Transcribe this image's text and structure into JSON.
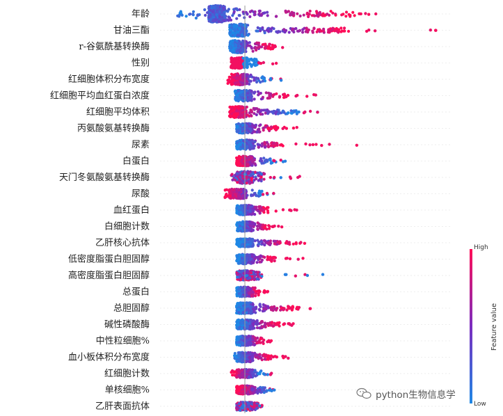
{
  "chart_data": {
    "type": "scatter",
    "subtype": "beeswarm",
    "features": [
      "年龄",
      "甘油三酯",
      "r-谷氨酰基转换酶",
      "性别",
      "红细胞体积分布宽度",
      "红细胞平均血红蛋白浓度",
      "红细胞平均体积",
      "丙氨酸氨基转换酶",
      "尿素",
      "白蛋白",
      "天门冬氨酸氨基转换酶",
      "尿酸",
      "血红蛋白",
      "白细胞计数",
      "乙肝核心抗体",
      "低密度脂蛋白胆固醇",
      "高密度脂蛋白胆固醇",
      "总蛋白",
      "总胆固醇",
      "碱性磷酸酶",
      "中性粒细胞%",
      "血小板体积分布宽度",
      "红细胞计数",
      "单核细胞%",
      "乙肝表面抗体"
    ],
    "value_range": [
      -0.5,
      1.1
    ],
    "colorbar": {
      "high": "High",
      "low": "Low",
      "title": "Feature value",
      "low_color": "#1e88e5",
      "high_color": "#ff0d57"
    }
  },
  "watermark": {
    "text": "python生物信息学",
    "icon": "wechat-icon"
  }
}
